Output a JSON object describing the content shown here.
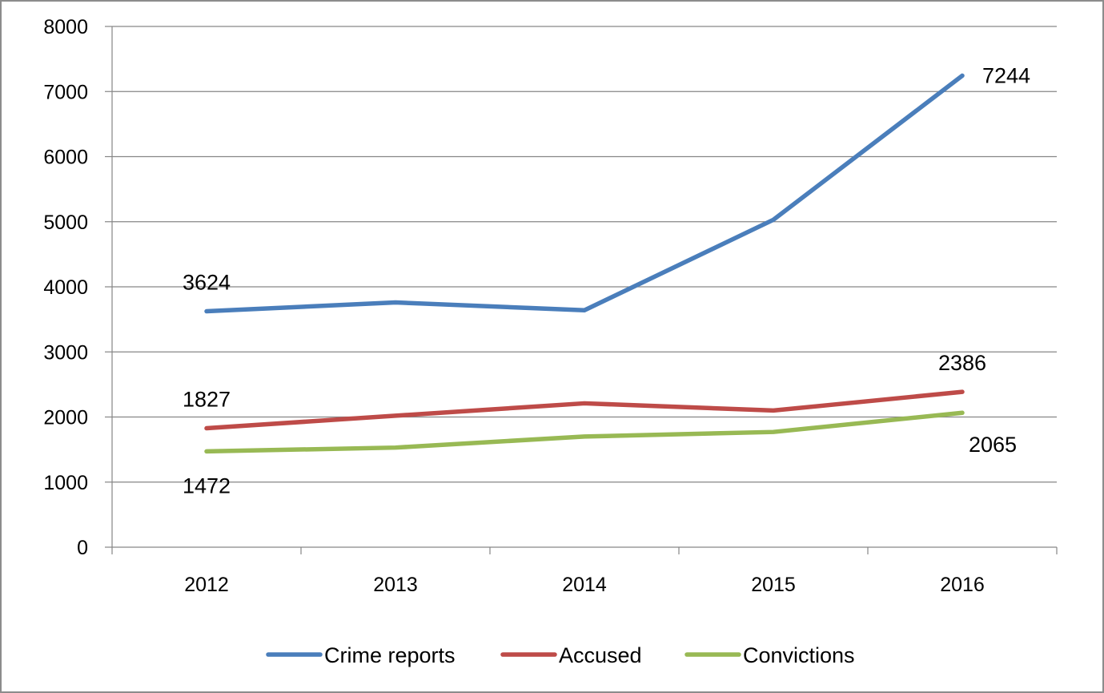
{
  "chart_data": {
    "type": "line",
    "categories": [
      "2012",
      "2013",
      "2014",
      "2015",
      "2016"
    ],
    "series": [
      {
        "name": "Crime reports",
        "color": "#4a7ebb",
        "values": [
          3624,
          3760,
          3640,
          5030,
          7244
        ]
      },
      {
        "name": "Accused",
        "color": "#be4b48",
        "values": [
          1827,
          2020,
          2210,
          2100,
          2386
        ]
      },
      {
        "name": "Convictions",
        "color": "#98b954",
        "values": [
          1472,
          1530,
          1700,
          1770,
          2065
        ]
      }
    ],
    "yticks": [
      "0",
      "1000",
      "2000",
      "3000",
      "4000",
      "5000",
      "6000",
      "7000",
      "8000"
    ],
    "ylim": [
      0,
      8000
    ],
    "data_labels": [
      {
        "series": 0,
        "index": 0,
        "text": "3624",
        "placement": "above"
      },
      {
        "series": 0,
        "index": 4,
        "text": "7244",
        "placement": "right"
      },
      {
        "series": 1,
        "index": 0,
        "text": "1827",
        "placement": "above"
      },
      {
        "series": 1,
        "index": 4,
        "text": "2386",
        "placement": "above"
      },
      {
        "series": 2,
        "index": 0,
        "text": "1472",
        "placement": "below"
      },
      {
        "series": 2,
        "index": 4,
        "text": "2065",
        "placement": "below-right"
      }
    ],
    "grid": true,
    "legend_position": "bottom"
  }
}
